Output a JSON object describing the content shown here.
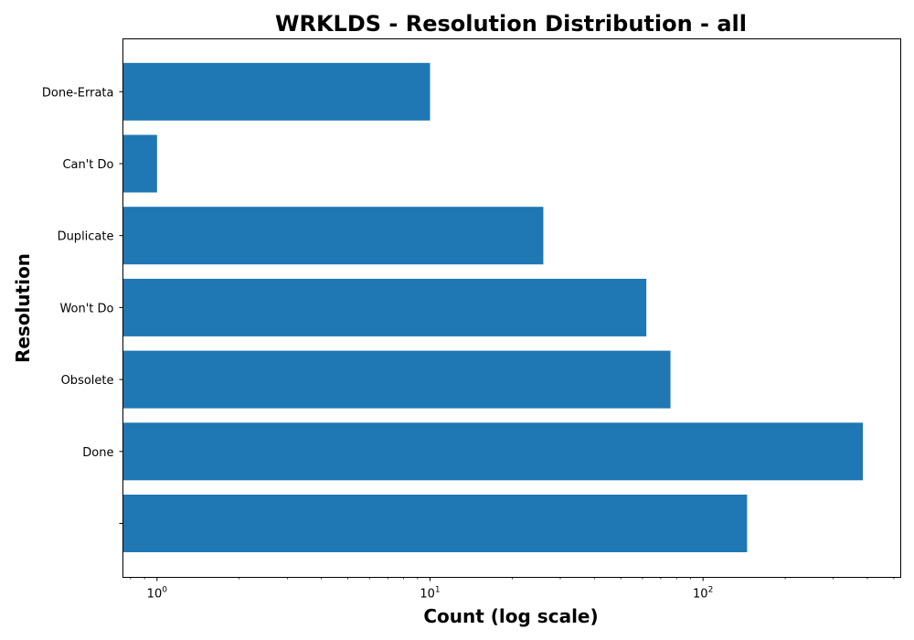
{
  "chart_data": {
    "type": "bar",
    "orientation": "horizontal",
    "title": "WRKLDS - Resolution Distribution - all",
    "xlabel": "Count (log scale)",
    "ylabel": "Resolution",
    "x_scale": "log",
    "xlim": [
      0.75,
      530
    ],
    "x_ticks": [
      {
        "base": "10",
        "exp": "0",
        "value": 1
      },
      {
        "base": "10",
        "exp": "1",
        "value": 10
      },
      {
        "base": "10",
        "exp": "2",
        "value": 100
      }
    ],
    "categories": [
      "",
      "Done",
      "Obsolete",
      "Won't Do",
      "Duplicate",
      "Can't Do",
      "Done-Errata"
    ],
    "values": [
      145,
      385,
      76,
      62,
      26,
      1,
      10
    ],
    "bar_color": "#1f77b4",
    "grid": false
  }
}
